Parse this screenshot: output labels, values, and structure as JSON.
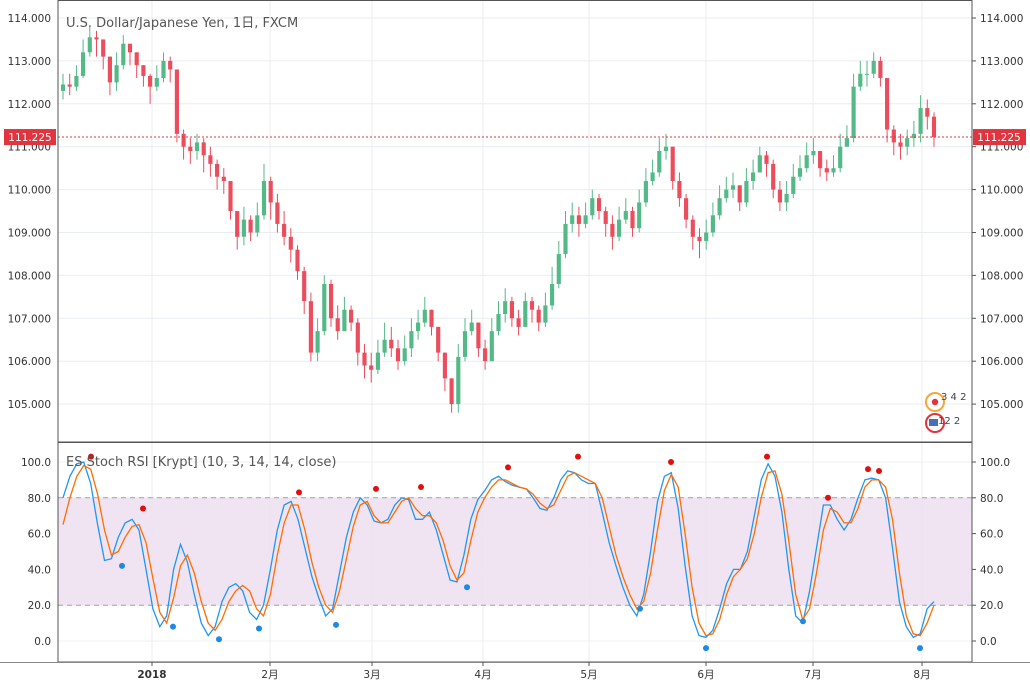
{
  "colors": {
    "up": "#53b987",
    "down": "#eb4d5c",
    "last_price": "#e0343f",
    "stoch_k": "#2196f3",
    "stoch_d": "#ff6d00",
    "band_fill": "#efdff0",
    "signal_high": "#e01010",
    "signal_low": "#1e88e5"
  },
  "price_panel": {
    "title": "U.S. Dollar/Japanese Yen, 1日, FXCM",
    "y_ticks": [
      "114.000",
      "113.000",
      "112.000",
      "111.000",
      "110.000",
      "109.000",
      "108.000",
      "107.000",
      "106.000",
      "105.000"
    ],
    "last_label": "111.225",
    "badge_top": "3 4 2",
    "badge_bottom": "12 2"
  },
  "osc_panel": {
    "title": "ES Stoch RSI [Krypt] (10, 3, 14, 14, close)",
    "y_ticks": [
      "100.0",
      "80.0",
      "60.0",
      "40.0",
      "20.0",
      "0.0"
    ]
  },
  "x_axis": {
    "labels": [
      "2018",
      "2月",
      "3月",
      "4月",
      "5月",
      "6月",
      "7月",
      "8月"
    ]
  },
  "chart_data": [
    {
      "type": "candlestick",
      "title": "U.S. Dollar/Japanese Yen, 1日, FXCM",
      "x_labels": [
        "2018",
        "2月",
        "3月",
        "4月",
        "5月",
        "6月",
        "7月",
        "8月"
      ],
      "ylim": [
        104.3,
        114.2
      ],
      "last_price": 111.225,
      "grid": true,
      "close": [
        112.45,
        112.4,
        112.65,
        113.2,
        113.55,
        113.5,
        113.1,
        112.5,
        112.9,
        113.4,
        113.2,
        112.9,
        112.65,
        112.4,
        112.6,
        113.0,
        112.8,
        111.3,
        111.0,
        110.9,
        111.1,
        110.8,
        110.6,
        110.3,
        110.2,
        109.5,
        108.9,
        109.3,
        109.0,
        109.4,
        110.2,
        109.7,
        109.2,
        108.9,
        108.6,
        108.1,
        107.4,
        106.2,
        106.7,
        107.8,
        107.0,
        106.7,
        107.2,
        106.9,
        106.2,
        105.9,
        105.8,
        106.2,
        106.5,
        106.3,
        106.0,
        106.3,
        106.7,
        106.9,
        107.2,
        106.8,
        106.2,
        105.6,
        105.0,
        106.1,
        106.7,
        106.9,
        106.3,
        106.0,
        106.7,
        107.1,
        107.4,
        107.0,
        106.8,
        107.4,
        107.2,
        106.9,
        107.3,
        107.8,
        108.5,
        109.2,
        109.4,
        109.2,
        109.4,
        109.8,
        109.5,
        109.2,
        108.9,
        109.3,
        109.5,
        109.1,
        109.7,
        110.2,
        110.4,
        110.9,
        111.0,
        110.2,
        109.8,
        109.3,
        108.9,
        108.8,
        109.0,
        109.4,
        109.8,
        110.0,
        110.1,
        109.7,
        110.2,
        110.4,
        110.8,
        110.6,
        110.0,
        109.7,
        109.9,
        110.3,
        110.5,
        110.8,
        110.9,
        110.5,
        110.4,
        110.5,
        111.0,
        111.2,
        112.4,
        112.7,
        112.7,
        113.0,
        112.6,
        111.4,
        111.1,
        111.0,
        111.2,
        111.3,
        111.9,
        111.7,
        111.225
      ],
      "high": [
        112.7,
        112.7,
        112.9,
        113.5,
        113.8,
        113.7,
        113.4,
        113.0,
        113.2,
        113.6,
        113.4,
        113.2,
        112.9,
        112.7,
        112.9,
        113.2,
        113.1,
        112.8,
        111.4,
        111.2,
        111.3,
        111.2,
        111.0,
        110.7,
        110.5,
        110.1,
        109.4,
        109.6,
        109.4,
        109.7,
        110.6,
        110.3,
        109.9,
        109.5,
        109.1,
        108.7,
        108.2,
        107.6,
        107.0,
        108.0,
        107.9,
        107.3,
        107.5,
        107.3,
        107.0,
        106.4,
        106.2,
        106.5,
        106.9,
        106.8,
        106.5,
        106.6,
        107.0,
        107.2,
        107.5,
        107.2,
        106.8,
        106.2,
        105.6,
        106.4,
        107.0,
        107.2,
        106.9,
        106.5,
        107.0,
        107.4,
        107.7,
        107.5,
        107.2,
        107.6,
        107.5,
        107.3,
        107.6,
        108.2,
        108.8,
        109.5,
        109.7,
        109.6,
        109.7,
        110.0,
        109.9,
        109.6,
        109.4,
        109.6,
        109.8,
        109.6,
        110.0,
        110.5,
        110.7,
        111.2,
        111.3,
        111.0,
        110.4,
        109.9,
        109.4,
        109.1,
        109.3,
        109.7,
        110.1,
        110.3,
        110.4,
        110.1,
        110.5,
        110.7,
        111.0,
        110.9,
        110.7,
        110.2,
        110.2,
        110.6,
        110.8,
        111.1,
        111.2,
        110.9,
        110.7,
        110.8,
        111.3,
        111.5,
        112.7,
        113.0,
        113.0,
        113.2,
        113.1,
        112.6,
        111.5,
        111.3,
        111.4,
        111.6,
        112.2,
        112.1,
        111.8
      ],
      "low": [
        112.1,
        112.2,
        112.3,
        112.6,
        113.1,
        113.1,
        112.8,
        112.2,
        112.3,
        112.8,
        112.9,
        112.6,
        112.4,
        112.0,
        112.3,
        112.5,
        112.5,
        111.1,
        110.7,
        110.6,
        110.7,
        110.4,
        110.3,
        110.0,
        109.9,
        109.3,
        108.6,
        108.7,
        108.8,
        108.9,
        109.3,
        109.3,
        109.0,
        108.7,
        108.3,
        107.9,
        107.1,
        106.0,
        106.0,
        106.6,
        106.8,
        106.5,
        106.7,
        106.7,
        105.9,
        105.6,
        105.5,
        105.7,
        106.1,
        106.1,
        105.8,
        105.9,
        106.1,
        106.5,
        106.8,
        106.6,
        106.0,
        105.3,
        104.8,
        104.8,
        106.0,
        106.6,
        106.1,
        105.8,
        106.0,
        106.6,
        106.9,
        106.8,
        106.6,
        106.8,
        106.9,
        106.7,
        106.8,
        107.2,
        107.7,
        108.4,
        109.0,
        108.9,
        109.1,
        109.3,
        109.3,
        108.9,
        108.6,
        108.8,
        109.2,
        108.9,
        109.0,
        109.6,
        110.1,
        110.3,
        110.7,
        110.0,
        109.6,
        109.1,
        108.6,
        108.4,
        108.6,
        108.9,
        109.3,
        109.7,
        109.8,
        109.5,
        109.6,
        110.0,
        110.4,
        110.3,
        109.8,
        109.5,
        109.5,
        109.8,
        110.2,
        110.4,
        110.6,
        110.3,
        110.2,
        110.3,
        110.4,
        111.0,
        111.1,
        112.3,
        112.4,
        112.6,
        112.4,
        111.1,
        110.8,
        110.7,
        110.8,
        111.0,
        111.1,
        111.4,
        111.0
      ]
    },
    {
      "type": "line",
      "title": "ES Stoch RSI [Krypt] (10, 3, 14, 14, close)",
      "ylim": [
        -5,
        105
      ],
      "band": [
        20,
        80
      ],
      "series": [
        {
          "values": [
            80,
            92,
            99,
            100,
            88,
            65,
            45,
            46,
            58,
            66,
            68,
            62,
            40,
            18,
            8,
            14,
            40,
            54,
            44,
            26,
            10,
            3,
            8,
            22,
            30,
            32,
            28,
            16,
            12,
            20,
            40,
            62,
            76,
            78,
            68,
            52,
            36,
            24,
            14,
            18,
            38,
            58,
            72,
            80,
            76,
            67,
            66,
            68,
            76,
            80,
            79,
            68,
            68,
            72,
            62,
            48,
            34,
            33,
            48,
            68,
            79,
            84,
            90,
            92,
            89,
            87,
            86,
            85,
            80,
            74,
            73,
            80,
            90,
            95,
            94,
            90,
            88,
            88,
            72,
            55,
            42,
            30,
            20,
            14,
            26,
            50,
            78,
            92,
            94,
            74,
            42,
            14,
            3,
            2,
            6,
            18,
            32,
            40,
            40,
            50,
            70,
            90,
            99,
            92,
            72,
            40,
            14,
            10,
            28,
            52,
            76,
            76,
            68,
            62,
            68,
            80,
            90,
            91,
            90,
            80,
            52,
            22,
            8,
            2,
            4,
            18,
            22
          ]
        },
        {
          "values": [
            65,
            80,
            92,
            98,
            96,
            82,
            62,
            48,
            50,
            58,
            64,
            65,
            55,
            35,
            16,
            10,
            24,
            42,
            48,
            38,
            22,
            10,
            6,
            12,
            22,
            28,
            31,
            28,
            18,
            14,
            26,
            48,
            66,
            76,
            76,
            62,
            44,
            30,
            20,
            16,
            28,
            46,
            64,
            76,
            78,
            70,
            66,
            66,
            72,
            78,
            80,
            74,
            70,
            70,
            66,
            56,
            42,
            34,
            38,
            56,
            72,
            80,
            86,
            90,
            90,
            88,
            86,
            85,
            82,
            77,
            74,
            76,
            84,
            92,
            94,
            92,
            90,
            88,
            80,
            64,
            48,
            36,
            26,
            18,
            22,
            38,
            62,
            84,
            93,
            86,
            60,
            30,
            10,
            3,
            4,
            12,
            26,
            36,
            40,
            46,
            60,
            80,
            94,
            95,
            82,
            56,
            26,
            12,
            18,
            38,
            62,
            74,
            72,
            66,
            66,
            74,
            86,
            90,
            90,
            86,
            68,
            38,
            14,
            4,
            3,
            10,
            20
          ]
        }
      ],
      "signals_high": [
        100,
        70,
        80,
        80,
        80,
        92,
        100,
        100,
        96,
        100,
        73,
        89,
        89
      ],
      "signals_low": [
        44,
        7,
        2,
        5,
        8,
        31,
        17,
        -4,
        11,
        -4
      ]
    }
  ]
}
